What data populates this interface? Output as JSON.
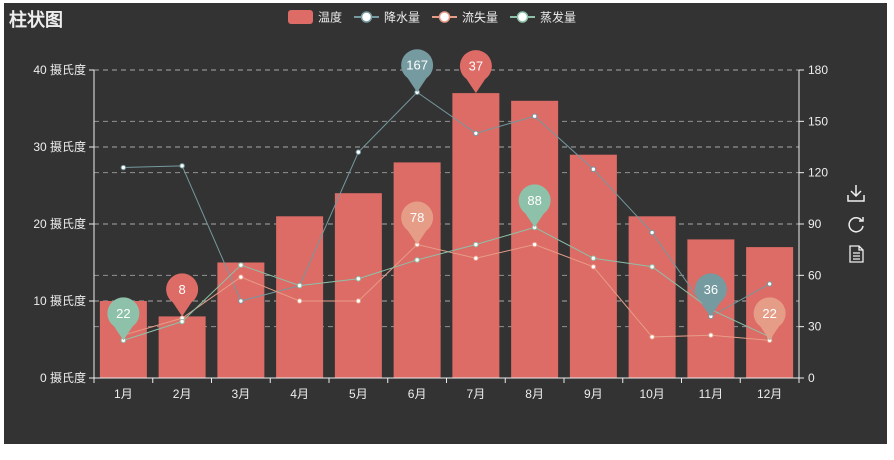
{
  "chart_data": {
    "type": "bar",
    "title": "柱状图",
    "categories": [
      "1月",
      "2月",
      "3月",
      "4月",
      "5月",
      "6月",
      "7月",
      "8月",
      "9月",
      "10月",
      "11月",
      "12月"
    ],
    "y_left": {
      "ticks": [
        0,
        10,
        20,
        30,
        40
      ],
      "tick_labels": [
        "0 摄氏度",
        "10 摄氏度",
        "20 摄氏度",
        "30 摄氏度",
        "40 摄氏度"
      ],
      "ylim": [
        0,
        40
      ]
    },
    "y_right": {
      "ticks": [
        0,
        30,
        60,
        90,
        120,
        150,
        180
      ],
      "tick_labels": [
        "0",
        "30",
        "60",
        "90",
        "120",
        "150",
        "180"
      ],
      "ylim": [
        0,
        180
      ]
    },
    "series": [
      {
        "name": "温度",
        "kind": "bar",
        "axis": "left",
        "color": "#dd6b66",
        "values": [
          10,
          8,
          15,
          21,
          24,
          28,
          37,
          36,
          29,
          21,
          18,
          17
        ],
        "markers": [
          {
            "index": 1,
            "label": "8",
            "color": "#dd6b66"
          },
          {
            "index": 6,
            "label": "37",
            "color": "#dd6b66"
          }
        ]
      },
      {
        "name": "降水量",
        "kind": "line",
        "axis": "right",
        "color": "#759aa0",
        "values": [
          123,
          124,
          45,
          54,
          132,
          167,
          143,
          153,
          122,
          85,
          36,
          55
        ],
        "markers": [
          {
            "index": 5,
            "label": "167",
            "color": "#759aa0"
          },
          {
            "index": 10,
            "label": "36",
            "color": "#759aa0"
          }
        ]
      },
      {
        "name": "流失量",
        "kind": "line",
        "axis": "right",
        "color": "#e69d87",
        "values": [
          25,
          35,
          59,
          45,
          45,
          78,
          70,
          78,
          65,
          24,
          25,
          22
        ],
        "markers": [
          {
            "index": 5,
            "label": "78",
            "color": "#e69d87"
          },
          {
            "index": 11,
            "label": "22",
            "color": "#e69d87"
          }
        ]
      },
      {
        "name": "蒸发量",
        "kind": "line",
        "axis": "right",
        "color": "#8dc1a9",
        "values": [
          22,
          33,
          66,
          54,
          58,
          69,
          78,
          88,
          70,
          65,
          40,
          24
        ],
        "markers": [
          {
            "index": 0,
            "label": "22",
            "color": "#8dc1a9"
          },
          {
            "index": 7,
            "label": "88",
            "color": "#8dc1a9"
          }
        ]
      }
    ],
    "right_axis_grid": "dashed",
    "legend_position": "top-center"
  },
  "toolbox": [
    {
      "id": "save",
      "icon": "download-icon"
    },
    {
      "id": "restore",
      "icon": "refresh-icon"
    },
    {
      "id": "dataview",
      "icon": "document-icon"
    }
  ],
  "colors": {
    "background": "#333333",
    "text": "#eeeeee",
    "axis": "#eeeeee",
    "grid": "#aaaaaa"
  }
}
